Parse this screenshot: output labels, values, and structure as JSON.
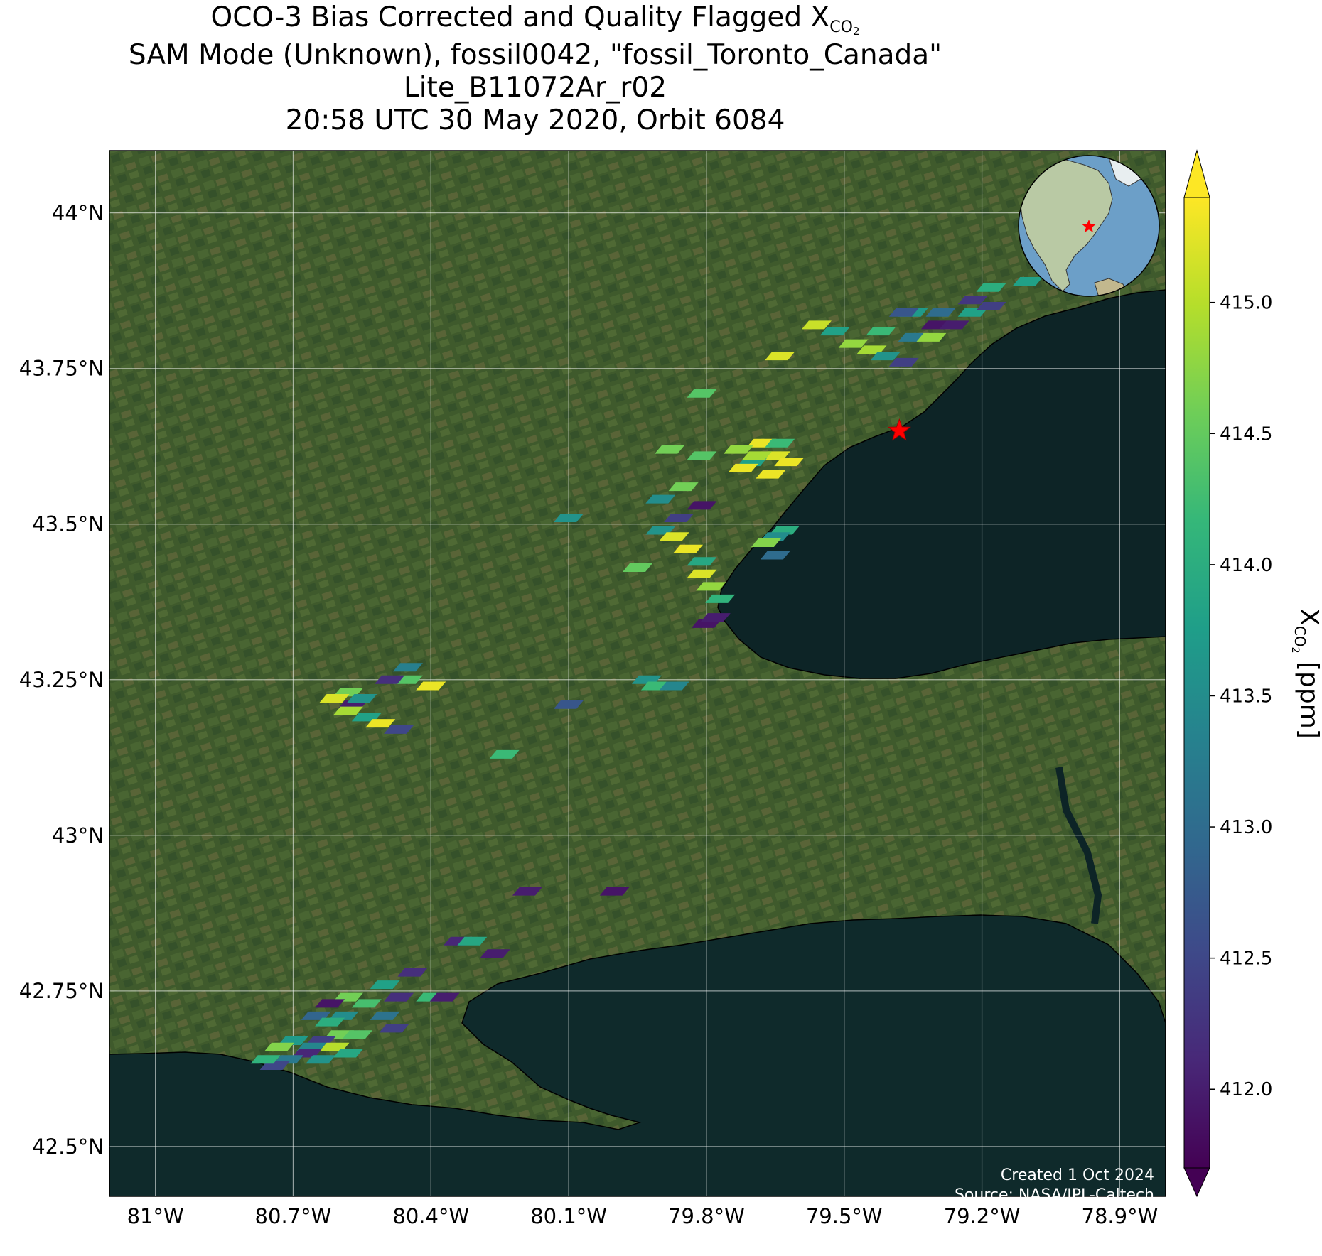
{
  "title": {
    "line1_prefix": "OCO-3 Bias Corrected and Quality Flagged X",
    "line1_sub": "CO",
    "line1_subsub": "2",
    "line2": "SAM Mode (Unknown), fossil0042, \"fossil_Toronto_Canada\"",
    "line3": "Lite_B11072Ar_r02",
    "line4": "20:58 UTC 30 May 2020, Orbit 6084"
  },
  "map": {
    "lon_range": [
      -81.1,
      -78.8
    ],
    "lat_range": [
      42.42,
      44.1
    ],
    "lon_ticks": [
      {
        "value": -81.0,
        "label": "81°W"
      },
      {
        "value": -80.7,
        "label": "80.7°W"
      },
      {
        "value": -80.4,
        "label": "80.4°W"
      },
      {
        "value": -80.1,
        "label": "80.1°W"
      },
      {
        "value": -79.8,
        "label": "79.8°W"
      },
      {
        "value": -79.5,
        "label": "79.5°W"
      },
      {
        "value": -79.2,
        "label": "79.2°W"
      },
      {
        "value": -78.9,
        "label": "78.9°W"
      }
    ],
    "lat_ticks": [
      {
        "value": 44.0,
        "label": "44°N"
      },
      {
        "value": 43.75,
        "label": "43.75°N"
      },
      {
        "value": 43.5,
        "label": "43.5°N"
      },
      {
        "value": 43.25,
        "label": "43.25°N"
      },
      {
        "value": 43.0,
        "label": "43°N"
      },
      {
        "value": 42.75,
        "label": "42.75°N"
      },
      {
        "value": 42.5,
        "label": "42.5°N"
      }
    ],
    "target": {
      "name": "fossil_Toronto_Canada",
      "lon": -79.38,
      "lat": 43.65
    },
    "colors": {
      "land": "#3f5a2c",
      "water": "#0d2426",
      "star": "#ff0000"
    }
  },
  "chart_data": {
    "type": "scatter",
    "description_units": "lon, lat in degrees; xco2 in ppm",
    "points": [
      {
        "lon": -79.56,
        "lat": 43.82,
        "xco2": 415.1
      },
      {
        "lon": -79.52,
        "lat": 43.81,
        "xco2": 413.8
      },
      {
        "lon": -79.48,
        "lat": 43.79,
        "xco2": 414.8
      },
      {
        "lon": -79.44,
        "lat": 43.78,
        "xco2": 414.9
      },
      {
        "lon": -79.41,
        "lat": 43.77,
        "xco2": 413.6
      },
      {
        "lon": -79.37,
        "lat": 43.76,
        "xco2": 412.4
      },
      {
        "lon": -79.42,
        "lat": 43.81,
        "xco2": 414.2
      },
      {
        "lon": -79.35,
        "lat": 43.8,
        "xco2": 413.2
      },
      {
        "lon": -79.31,
        "lat": 43.8,
        "xco2": 414.8
      },
      {
        "lon": -79.3,
        "lat": 43.82,
        "xco2": 411.9
      },
      {
        "lon": -79.26,
        "lat": 43.82,
        "xco2": 412.0
      },
      {
        "lon": -79.22,
        "lat": 43.84,
        "xco2": 413.8
      },
      {
        "lon": -79.18,
        "lat": 43.85,
        "xco2": 412.4
      },
      {
        "lon": -79.35,
        "lat": 43.84,
        "xco2": 413.7
      },
      {
        "lon": -79.29,
        "lat": 43.84,
        "xco2": 413.0
      },
      {
        "lon": -79.22,
        "lat": 43.86,
        "xco2": 412.3
      },
      {
        "lon": -79.18,
        "lat": 43.88,
        "xco2": 414.0
      },
      {
        "lon": -79.1,
        "lat": 43.89,
        "xco2": 413.8
      },
      {
        "lon": -78.96,
        "lat": 43.9,
        "xco2": 413.2
      },
      {
        "lon": -79.37,
        "lat": 43.84,
        "xco2": 412.7
      },
      {
        "lon": -79.64,
        "lat": 43.77,
        "xco2": 415.2
      },
      {
        "lon": -79.81,
        "lat": 43.71,
        "xco2": 414.4
      },
      {
        "lon": -79.68,
        "lat": 43.63,
        "xco2": 415.3
      },
      {
        "lon": -79.65,
        "lat": 43.61,
        "xco2": 415.2
      },
      {
        "lon": -79.7,
        "lat": 43.6,
        "xco2": 413.8
      },
      {
        "lon": -79.73,
        "lat": 43.62,
        "xco2": 414.8
      },
      {
        "lon": -79.72,
        "lat": 43.59,
        "xco2": 415.3
      },
      {
        "lon": -79.66,
        "lat": 43.58,
        "xco2": 415.3
      },
      {
        "lon": -79.62,
        "lat": 43.6,
        "xco2": 415.3
      },
      {
        "lon": -79.64,
        "lat": 43.63,
        "xco2": 414.2
      },
      {
        "lon": -79.69,
        "lat": 43.61,
        "xco2": 414.9
      },
      {
        "lon": -79.88,
        "lat": 43.62,
        "xco2": 414.6
      },
      {
        "lon": -79.81,
        "lat": 43.61,
        "xco2": 414.4
      },
      {
        "lon": -79.85,
        "lat": 43.56,
        "xco2": 414.6
      },
      {
        "lon": -79.9,
        "lat": 43.54,
        "xco2": 413.5
      },
      {
        "lon": -79.81,
        "lat": 43.53,
        "xco2": 411.9
      },
      {
        "lon": -79.86,
        "lat": 43.51,
        "xco2": 412.4
      },
      {
        "lon": -80.1,
        "lat": 43.51,
        "xco2": 413.6
      },
      {
        "lon": -79.9,
        "lat": 43.49,
        "xco2": 413.6
      },
      {
        "lon": -79.87,
        "lat": 43.48,
        "xco2": 415.2
      },
      {
        "lon": -79.84,
        "lat": 43.46,
        "xco2": 415.3
      },
      {
        "lon": -79.81,
        "lat": 43.44,
        "xco2": 413.9
      },
      {
        "lon": -79.95,
        "lat": 43.43,
        "xco2": 414.5
      },
      {
        "lon": -79.81,
        "lat": 43.42,
        "xco2": 415.2
      },
      {
        "lon": -79.79,
        "lat": 43.4,
        "xco2": 414.8
      },
      {
        "lon": -79.77,
        "lat": 43.38,
        "xco2": 414.1
      },
      {
        "lon": -79.8,
        "lat": 43.34,
        "xco2": 411.9
      },
      {
        "lon": -79.78,
        "lat": 43.35,
        "xco2": 412.0
      },
      {
        "lon": -79.63,
        "lat": 43.49,
        "xco2": 414.0
      },
      {
        "lon": -79.65,
        "lat": 43.48,
        "xco2": 413.5
      },
      {
        "lon": -79.67,
        "lat": 43.47,
        "xco2": 414.7
      },
      {
        "lon": -79.65,
        "lat": 43.45,
        "xco2": 413.0
      },
      {
        "lon": -79.93,
        "lat": 43.25,
        "xco2": 413.6
      },
      {
        "lon": -79.91,
        "lat": 43.24,
        "xco2": 414.2
      },
      {
        "lon": -79.87,
        "lat": 43.24,
        "xco2": 413.4
      },
      {
        "lon": -80.1,
        "lat": 43.21,
        "xco2": 412.7
      },
      {
        "lon": -80.24,
        "lat": 43.13,
        "xco2": 414.2
      },
      {
        "lon": -80.45,
        "lat": 43.27,
        "xco2": 413.3
      },
      {
        "lon": -80.45,
        "lat": 43.25,
        "xco2": 414.4
      },
      {
        "lon": -80.49,
        "lat": 43.25,
        "xco2": 412.2
      },
      {
        "lon": -80.4,
        "lat": 43.24,
        "xco2": 415.3
      },
      {
        "lon": -80.58,
        "lat": 43.23,
        "xco2": 414.6
      },
      {
        "lon": -80.61,
        "lat": 43.22,
        "xco2": 415.2
      },
      {
        "lon": -80.57,
        "lat": 43.21,
        "xco2": 412.0
      },
      {
        "lon": -80.55,
        "lat": 43.22,
        "xco2": 413.6
      },
      {
        "lon": -80.58,
        "lat": 43.2,
        "xco2": 414.9
      },
      {
        "lon": -80.54,
        "lat": 43.19,
        "xco2": 413.8
      },
      {
        "lon": -80.51,
        "lat": 43.18,
        "xco2": 415.3
      },
      {
        "lon": -80.47,
        "lat": 43.17,
        "xco2": 412.5
      },
      {
        "lon": -80.19,
        "lat": 42.91,
        "xco2": 412.0
      },
      {
        "lon": -80.0,
        "lat": 42.91,
        "xco2": 411.9
      },
      {
        "lon": -80.34,
        "lat": 42.83,
        "xco2": 412.1
      },
      {
        "lon": -80.31,
        "lat": 42.83,
        "xco2": 413.9
      },
      {
        "lon": -80.26,
        "lat": 42.81,
        "xco2": 412.0
      },
      {
        "lon": -80.44,
        "lat": 42.78,
        "xco2": 412.2
      },
      {
        "lon": -80.4,
        "lat": 42.74,
        "xco2": 414.2
      },
      {
        "lon": -80.37,
        "lat": 42.74,
        "xco2": 412.0
      },
      {
        "lon": -80.5,
        "lat": 42.76,
        "xco2": 413.8
      },
      {
        "lon": -80.47,
        "lat": 42.74,
        "xco2": 412.2
      },
      {
        "lon": -80.5,
        "lat": 42.71,
        "xco2": 413.1
      },
      {
        "lon": -80.54,
        "lat": 42.73,
        "xco2": 414.3
      },
      {
        "lon": -80.48,
        "lat": 42.69,
        "xco2": 412.4
      },
      {
        "lon": -80.58,
        "lat": 42.74,
        "xco2": 414.6
      },
      {
        "lon": -80.62,
        "lat": 42.73,
        "xco2": 411.9
      },
      {
        "lon": -80.59,
        "lat": 42.71,
        "xco2": 413.5
      },
      {
        "lon": -80.65,
        "lat": 42.71,
        "xco2": 412.9
      },
      {
        "lon": -80.62,
        "lat": 42.7,
        "xco2": 414.0
      },
      {
        "lon": -80.6,
        "lat": 42.68,
        "xco2": 414.6
      },
      {
        "lon": -80.56,
        "lat": 42.68,
        "xco2": 414.4
      },
      {
        "lon": -80.64,
        "lat": 42.67,
        "xco2": 412.4
      },
      {
        "lon": -80.66,
        "lat": 42.66,
        "xco2": 413.4
      },
      {
        "lon": -80.61,
        "lat": 42.66,
        "xco2": 415.0
      },
      {
        "lon": -80.7,
        "lat": 42.67,
        "xco2": 413.7
      },
      {
        "lon": -80.73,
        "lat": 42.66,
        "xco2": 414.7
      },
      {
        "lon": -80.67,
        "lat": 42.65,
        "xco2": 412.1
      },
      {
        "lon": -80.71,
        "lat": 42.64,
        "xco2": 413.2
      },
      {
        "lon": -80.64,
        "lat": 42.64,
        "xco2": 413.6
      },
      {
        "lon": -80.74,
        "lat": 42.63,
        "xco2": 412.5
      },
      {
        "lon": -80.76,
        "lat": 42.64,
        "xco2": 414.1
      },
      {
        "lon": -80.58,
        "lat": 42.65,
        "xco2": 413.9
      }
    ]
  },
  "colorbar": {
    "label_prefix": "X",
    "label_sub": "CO",
    "label_subsub": "2",
    "label_suffix": " [ppm]",
    "range": [
      411.7,
      415.4
    ],
    "ticks": [
      "412.0",
      "412.5",
      "413.0",
      "413.5",
      "414.0",
      "414.5",
      "415.0"
    ],
    "colors": [
      "#440154",
      "#482878",
      "#3e4989",
      "#31688e",
      "#26828e",
      "#1f9e89",
      "#35b779",
      "#6ece58",
      "#b5de2b",
      "#fde725"
    ]
  },
  "footer": {
    "created": "Created 1 Oct 2024",
    "source": "Source: NASA/JPL-Caltech"
  }
}
